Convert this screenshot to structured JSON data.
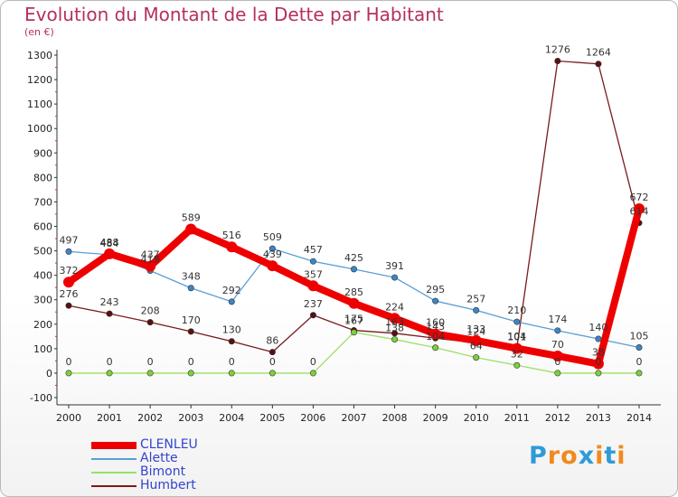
{
  "title": "Evolution du Montant de la Dette par Habitant",
  "subtitle": "(en €)",
  "logo": {
    "text": "Proxiti",
    "letters": [
      "P",
      "r",
      "o",
      "x",
      "i",
      "t",
      "i"
    ],
    "colors": [
      "#2e9bd6",
      "#f08a1c",
      "#f08a1c",
      "#2e9bd6",
      "#f08a1c",
      "#2e9bd6",
      "#f08a1c"
    ]
  },
  "chart_data": {
    "type": "line",
    "x": [
      "2000",
      "2001",
      "2002",
      "2003",
      "2004",
      "2005",
      "2006",
      "2007",
      "2008",
      "2009",
      "2010",
      "2011",
      "2012",
      "2013",
      "2014"
    ],
    "ylim": [
      -100,
      1300
    ],
    "yticks": [
      "-100",
      "0",
      "100",
      "200",
      "300",
      "400",
      "500",
      "600",
      "700",
      "800",
      "900",
      "1000",
      "1100",
      "1200",
      "1300"
    ],
    "grid": false,
    "legend_position": "bottom-left",
    "series": [
      {
        "name": "Humbert",
        "color": "#7a1a1a",
        "dot": "#5a1010",
        "values": [
          276,
          243,
          208,
          170,
          130,
          86,
          237,
          175,
          163,
          143,
          124,
          104,
          1276,
          1264,
          614
        ],
        "labels": [
          "276",
          "243",
          "208",
          "170",
          "130",
          "86",
          "237",
          "175",
          "163",
          "143",
          "124",
          "104",
          "1276",
          "1264",
          "614"
        ]
      },
      {
        "name": "Bimont",
        "color": "#99e066",
        "dot": "#7cd03c",
        "values": [
          0,
          0,
          0,
          0,
          0,
          0,
          0,
          167,
          138,
          104,
          64,
          32,
          0,
          0,
          0
        ],
        "labels": [
          "0",
          "0",
          "0",
          "0",
          "0",
          "0",
          "0",
          "167",
          "138",
          "104",
          "64",
          "32",
          "0",
          "0",
          "0"
        ]
      },
      {
        "name": "Alette",
        "color": "#5a9ed6",
        "dot": "#3a86c8",
        "values": [
          497,
          484,
          419,
          348,
          292,
          509,
          457,
          425,
          391,
          295,
          257,
          210,
          174,
          140,
          105
        ],
        "labels": [
          "497",
          "484",
          "419",
          "348",
          "292",
          "509",
          "457",
          "425",
          "391",
          "295",
          "257",
          "210",
          "174",
          "140",
          "105"
        ]
      },
      {
        "name": "CLENLEU",
        "color": "#ee0000",
        "dot": "#ee0000",
        "values": [
          372,
          488,
          437,
          589,
          516,
          439,
          357,
          285,
          224,
          160,
          133,
          101,
          70,
          38,
          672
        ],
        "labels": [
          "372",
          "488",
          "437",
          "589",
          "516",
          "439",
          "357",
          "285",
          "224",
          "160",
          "133",
          "101",
          "70",
          "38",
          "672"
        ]
      }
    ]
  }
}
